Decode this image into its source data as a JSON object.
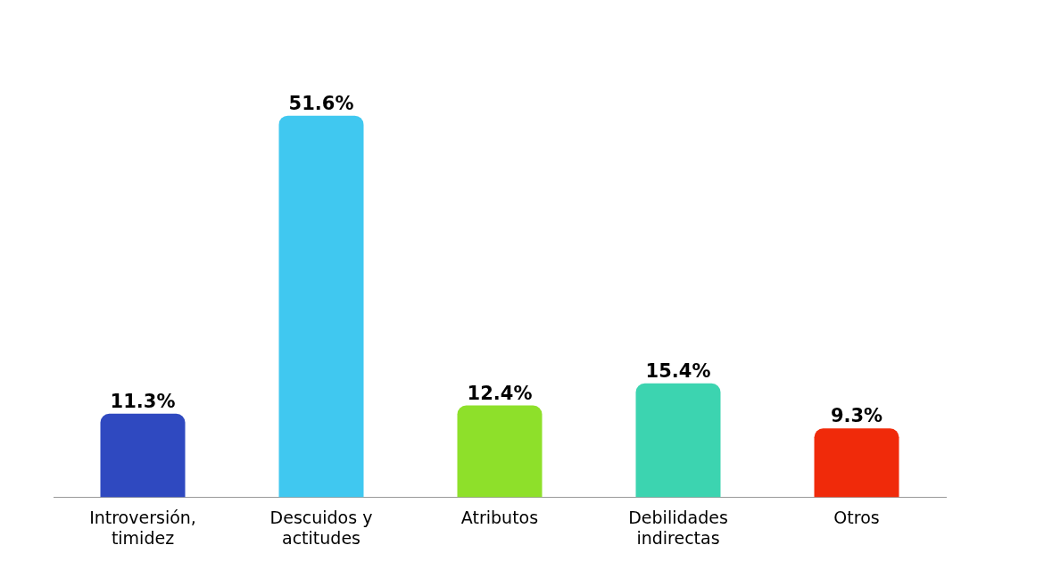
{
  "chart_data": {
    "type": "bar",
    "categories": [
      "Introversión, timidez",
      "Descuidos y actitudes",
      "Atributos",
      "Debilidades indirectas",
      "Otros"
    ],
    "values": [
      11.3,
      51.6,
      12.4,
      15.4,
      9.3
    ],
    "colors": [
      "#2f49c0",
      "#40c8f0",
      "#8ee02a",
      "#3cd4b0",
      "#f02a0a"
    ],
    "value_labels": [
      "11.3%",
      "51.6%",
      "12.4%",
      "15.4%",
      "9.3%"
    ],
    "grid": false,
    "legend": false,
    "tick_labels": "x"
  }
}
